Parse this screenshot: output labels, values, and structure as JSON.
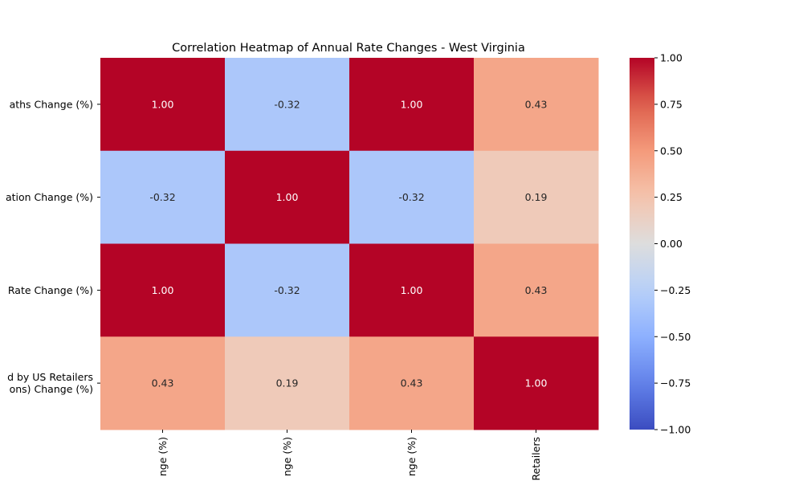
{
  "chart_data": {
    "type": "heatmap",
    "title": "Correlation Heatmap of Annual Rate Changes - West Virginia",
    "row_labels": [
      "aths Change (%)",
      "ation Change (%)",
      "Rate Change (%)",
      "d by US Retailers\nons) Change (%)"
    ],
    "col_labels": [
      "nge (%)",
      "nge (%)",
      "nge (%)",
      "Retailers"
    ],
    "values": [
      [
        1.0,
        -0.32,
        1.0,
        0.43
      ],
      [
        -0.32,
        1.0,
        -0.32,
        0.19
      ],
      [
        1.0,
        -0.32,
        1.0,
        0.43
      ],
      [
        0.43,
        0.19,
        0.43,
        1.0
      ]
    ],
    "value_format": "0.00",
    "colormap": "coolwarm",
    "vmin": -1.0,
    "vmax": 1.0,
    "colorbar_ticks": [
      "1.00",
      "0.75",
      "0.50",
      "0.25",
      "0.00",
      "−0.25",
      "−0.50",
      "−0.75",
      "−1.00"
    ],
    "colorbar_tick_values": [
      1.0,
      0.75,
      0.5,
      0.25,
      0.0,
      -0.25,
      -0.5,
      -0.75,
      -1.0
    ],
    "grid": false,
    "legend": "colorbar-right"
  }
}
